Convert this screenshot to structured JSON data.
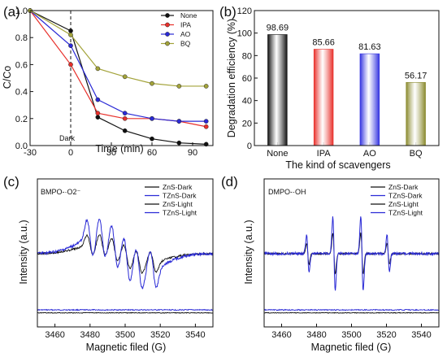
{
  "chart_data": [
    {
      "panel_label": "(a)",
      "type": "line",
      "xlabel": "Time (min)",
      "ylabel": "C/Co",
      "xlim": [
        -30,
        105
      ],
      "ylim": [
        0.0,
        1.0
      ],
      "xticks": [
        -30,
        0,
        30,
        60,
        90
      ],
      "yticks": [
        0.0,
        0.2,
        0.4,
        0.6,
        0.8,
        1.0
      ],
      "annotation": "Dark",
      "dashed_line_x": 0,
      "legend_position": "top-right",
      "series": [
        {
          "name": "None",
          "color": "#111111",
          "x": [
            -30,
            0,
            20,
            40,
            60,
            80,
            100
          ],
          "y": [
            1.0,
            0.85,
            0.21,
            0.11,
            0.05,
            0.02,
            0.01
          ]
        },
        {
          "name": "IPA",
          "color": "#e8302b",
          "x": [
            -30,
            0,
            20,
            40,
            60,
            80,
            100
          ],
          "y": [
            1.0,
            0.6,
            0.24,
            0.2,
            0.2,
            0.18,
            0.14
          ]
        },
        {
          "name": "AO",
          "color": "#2a2ad6",
          "x": [
            -30,
            0,
            20,
            40,
            60,
            80,
            100
          ],
          "y": [
            1.0,
            0.74,
            0.34,
            0.24,
            0.2,
            0.18,
            0.18
          ]
        },
        {
          "name": "BQ",
          "color": "#a3a33a",
          "x": [
            -30,
            0,
            20,
            40,
            60,
            80,
            100
          ],
          "y": [
            1.0,
            0.82,
            0.57,
            0.51,
            0.46,
            0.44,
            0.44
          ]
        }
      ]
    },
    {
      "panel_label": "(b)",
      "type": "bar",
      "xlabel": "The kind of scavengers",
      "ylabel": "Degradation efficiency (%)",
      "ylim": [
        0,
        120
      ],
      "yticks": [
        0,
        20,
        40,
        60,
        80,
        100,
        120
      ],
      "categories": [
        "None",
        "IPA",
        "AO",
        "BQ"
      ],
      "values": [
        98.69,
        85.66,
        81.63,
        56.17
      ],
      "value_labels": [
        "98.69",
        "85.66",
        "81.63",
        "56.17"
      ],
      "colors": [
        "#111111",
        "#e8302b",
        "#3333e0",
        "#8a8a2e"
      ]
    },
    {
      "panel_label": "(c)",
      "type": "line",
      "annotation": "BMPO-·O2⁻",
      "xlabel": "Magnetic filed (G)",
      "ylabel": "Intensity (a.u.)",
      "xlim": [
        3450,
        3550
      ],
      "xticks": [
        3460,
        3480,
        3500,
        3520,
        3540
      ],
      "legend_position": "top-right",
      "series": [
        {
          "name": "ZnS-Dark",
          "color": "#111111"
        },
        {
          "name": "TZnS-Dark",
          "color": "#2a2ad6"
        },
        {
          "name": "ZnS-Light",
          "color": "#111111"
        },
        {
          "name": "TZnS-Light",
          "color": "#2a2ad6"
        }
      ],
      "peaks_G": [
        3480,
        3487,
        3494,
        3501,
        3508,
        3516
      ],
      "peak_amplitude": {
        "ZnS-Light": 0.55,
        "TZnS-Light": 1.0
      }
    },
    {
      "panel_label": "(d)",
      "type": "line",
      "annotation": "DMPO-·OH",
      "xlabel": "Magnetic filed (G)",
      "ylabel": "Intensity (a.u.)",
      "xlim": [
        3450,
        3550
      ],
      "xticks": [
        3460,
        3480,
        3500,
        3520,
        3540
      ],
      "legend_position": "top-right",
      "series": [
        {
          "name": "ZnS-Dark",
          "color": "#111111"
        },
        {
          "name": "TZnS-Dark",
          "color": "#2a2ad6"
        },
        {
          "name": "ZnS-Light",
          "color": "#111111"
        },
        {
          "name": "TZnS-Light",
          "color": "#2a2ad6"
        }
      ],
      "peaks_G": [
        3475,
        3490,
        3506,
        3521
      ],
      "peak_ratio": [
        1,
        2,
        2,
        1
      ]
    }
  ]
}
